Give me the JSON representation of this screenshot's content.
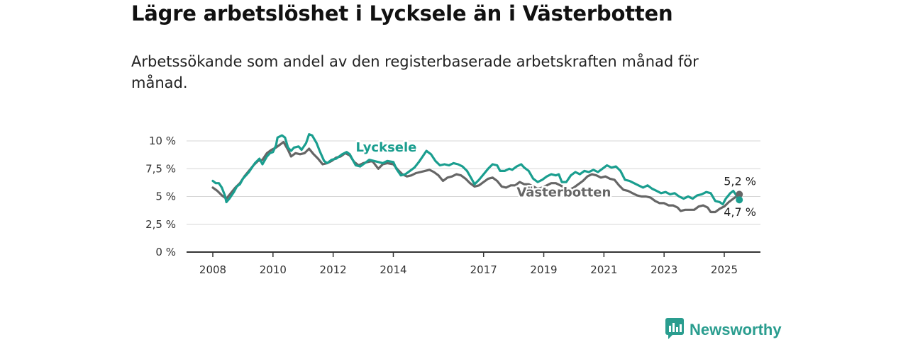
{
  "title": "Lägre arbetslöshet i Lycksele än i Västerbotten",
  "subtitle": "Arbetssökande som andel av den registerbaserade arbetskraften månad för månad.",
  "brand": {
    "name": "Newsworthy",
    "color": "#2a9d8f",
    "icon": "newsworthy-logo-icon"
  },
  "chart_data": {
    "type": "line",
    "ylim": [
      0,
      10
    ],
    "yticks": [
      0,
      2.5,
      5,
      7.5,
      10
    ],
    "ytick_labels": [
      "0 %",
      "2,5 %",
      "5 %",
      "7,5 %",
      "10 %"
    ],
    "xticks": [
      2008,
      2010,
      2012,
      2014,
      2017,
      2019,
      2021,
      2023,
      2025
    ],
    "grid": true,
    "series": [
      {
        "name": "Lycksele",
        "color": "#1a9e8f",
        "end_label": "4,7 %",
        "points": [
          [
            2008.0,
            6.4
          ],
          [
            2008.1,
            6.2
          ],
          [
            2008.2,
            6.2
          ],
          [
            2008.3,
            5.8
          ],
          [
            2008.4,
            5.1
          ],
          [
            2008.45,
            4.5
          ],
          [
            2008.55,
            4.8
          ],
          [
            2008.7,
            5.4
          ],
          [
            2008.8,
            5.9
          ],
          [
            2008.9,
            6.1
          ],
          [
            2009.0,
            6.6
          ],
          [
            2009.2,
            7.2
          ],
          [
            2009.4,
            8.0
          ],
          [
            2009.55,
            8.4
          ],
          [
            2009.65,
            7.9
          ],
          [
            2009.8,
            8.6
          ],
          [
            2009.9,
            8.9
          ],
          [
            2010.0,
            9.0
          ],
          [
            2010.1,
            9.6
          ],
          [
            2010.15,
            10.3
          ],
          [
            2010.3,
            10.5
          ],
          [
            2010.4,
            10.3
          ],
          [
            2010.5,
            9.4
          ],
          [
            2010.6,
            9.1
          ],
          [
            2010.7,
            9.4
          ],
          [
            2010.85,
            9.5
          ],
          [
            2010.95,
            9.2
          ],
          [
            2011.1,
            9.8
          ],
          [
            2011.2,
            10.6
          ],
          [
            2011.3,
            10.5
          ],
          [
            2011.45,
            9.8
          ],
          [
            2011.55,
            9.1
          ],
          [
            2011.7,
            8.2
          ],
          [
            2011.8,
            8.0
          ],
          [
            2011.95,
            8.3
          ],
          [
            2012.1,
            8.4
          ],
          [
            2012.3,
            8.8
          ],
          [
            2012.45,
            9.0
          ],
          [
            2012.55,
            8.8
          ],
          [
            2012.65,
            8.3
          ],
          [
            2012.75,
            7.8
          ],
          [
            2012.9,
            7.7
          ],
          [
            2013.0,
            7.9
          ],
          [
            2013.2,
            8.3
          ],
          [
            2013.5,
            8.1
          ],
          [
            2013.65,
            8.0
          ],
          [
            2013.8,
            8.2
          ],
          [
            2014.0,
            8.1
          ],
          [
            2014.1,
            7.5
          ],
          [
            2014.25,
            6.9
          ],
          [
            2014.4,
            7.0
          ],
          [
            2014.55,
            7.3
          ],
          [
            2014.7,
            7.6
          ],
          [
            2014.85,
            8.1
          ],
          [
            2015.0,
            8.7
          ],
          [
            2015.1,
            9.1
          ],
          [
            2015.25,
            8.8
          ],
          [
            2015.4,
            8.2
          ],
          [
            2015.55,
            7.8
          ],
          [
            2015.7,
            7.9
          ],
          [
            2015.85,
            7.8
          ],
          [
            2016.0,
            8.0
          ],
          [
            2016.15,
            7.9
          ],
          [
            2016.3,
            7.7
          ],
          [
            2016.45,
            7.3
          ],
          [
            2016.6,
            6.6
          ],
          [
            2016.7,
            6.1
          ],
          [
            2016.85,
            6.5
          ],
          [
            2017.0,
            7.0
          ],
          [
            2017.15,
            7.5
          ],
          [
            2017.3,
            7.9
          ],
          [
            2017.45,
            7.8
          ],
          [
            2017.55,
            7.3
          ],
          [
            2017.7,
            7.3
          ],
          [
            2017.85,
            7.5
          ],
          [
            2017.95,
            7.4
          ],
          [
            2018.1,
            7.7
          ],
          [
            2018.25,
            7.9
          ],
          [
            2018.35,
            7.6
          ],
          [
            2018.5,
            7.3
          ],
          [
            2018.65,
            6.6
          ],
          [
            2018.8,
            6.3
          ],
          [
            2018.95,
            6.5
          ],
          [
            2019.1,
            6.8
          ],
          [
            2019.25,
            7.0
          ],
          [
            2019.4,
            6.9
          ],
          [
            2019.5,
            7.0
          ],
          [
            2019.6,
            6.3
          ],
          [
            2019.75,
            6.3
          ],
          [
            2019.9,
            6.9
          ],
          [
            2020.05,
            7.2
          ],
          [
            2020.2,
            7.0
          ],
          [
            2020.35,
            7.3
          ],
          [
            2020.5,
            7.2
          ],
          [
            2020.65,
            7.4
          ],
          [
            2020.8,
            7.2
          ],
          [
            2020.95,
            7.5
          ],
          [
            2021.1,
            7.8
          ],
          [
            2021.25,
            7.6
          ],
          [
            2021.4,
            7.7
          ],
          [
            2021.55,
            7.3
          ],
          [
            2021.7,
            6.5
          ],
          [
            2021.85,
            6.4
          ],
          [
            2022.0,
            6.2
          ],
          [
            2022.15,
            6.0
          ],
          [
            2022.3,
            5.8
          ],
          [
            2022.45,
            6.0
          ],
          [
            2022.6,
            5.7
          ],
          [
            2022.75,
            5.5
          ],
          [
            2022.9,
            5.3
          ],
          [
            2023.05,
            5.4
          ],
          [
            2023.2,
            5.2
          ],
          [
            2023.35,
            5.3
          ],
          [
            2023.5,
            5.0
          ],
          [
            2023.65,
            4.8
          ],
          [
            2023.8,
            5.0
          ],
          [
            2023.95,
            4.8
          ],
          [
            2024.1,
            5.1
          ],
          [
            2024.25,
            5.2
          ],
          [
            2024.4,
            5.4
          ],
          [
            2024.55,
            5.3
          ],
          [
            2024.7,
            4.6
          ],
          [
            2024.85,
            4.5
          ],
          [
            2024.95,
            4.3
          ],
          [
            2025.05,
            4.8
          ],
          [
            2025.2,
            5.3
          ],
          [
            2025.3,
            5.5
          ],
          [
            2025.4,
            5.1
          ],
          [
            2025.5,
            4.7
          ]
        ]
      },
      {
        "name": "Västerbotten",
        "color": "#666666",
        "end_label": "5,2 %",
        "points": [
          [
            2008.0,
            5.8
          ],
          [
            2008.15,
            5.5
          ],
          [
            2008.3,
            5.1
          ],
          [
            2008.45,
            4.8
          ],
          [
            2008.6,
            5.3
          ],
          [
            2008.75,
            5.8
          ],
          [
            2008.9,
            6.2
          ],
          [
            2009.05,
            6.8
          ],
          [
            2009.2,
            7.3
          ],
          [
            2009.35,
            7.8
          ],
          [
            2009.5,
            8.2
          ],
          [
            2009.65,
            8.3
          ],
          [
            2009.8,
            8.9
          ],
          [
            2009.95,
            9.2
          ],
          [
            2010.1,
            9.4
          ],
          [
            2010.2,
            9.6
          ],
          [
            2010.35,
            9.9
          ],
          [
            2010.5,
            9.2
          ],
          [
            2010.6,
            8.6
          ],
          [
            2010.75,
            8.9
          ],
          [
            2010.9,
            8.8
          ],
          [
            2011.05,
            8.9
          ],
          [
            2011.2,
            9.3
          ],
          [
            2011.35,
            8.8
          ],
          [
            2011.5,
            8.4
          ],
          [
            2011.65,
            7.9
          ],
          [
            2011.8,
            8.0
          ],
          [
            2011.95,
            8.2
          ],
          [
            2012.1,
            8.5
          ],
          [
            2012.25,
            8.6
          ],
          [
            2012.4,
            8.9
          ],
          [
            2012.55,
            8.7
          ],
          [
            2012.7,
            8.1
          ],
          [
            2012.85,
            7.8
          ],
          [
            2013.0,
            8.0
          ],
          [
            2013.15,
            8.1
          ],
          [
            2013.3,
            8.2
          ],
          [
            2013.5,
            7.5
          ],
          [
            2013.65,
            7.9
          ],
          [
            2013.8,
            8.0
          ],
          [
            2014.0,
            7.9
          ],
          [
            2014.15,
            7.4
          ],
          [
            2014.3,
            7.0
          ],
          [
            2014.45,
            6.8
          ],
          [
            2014.6,
            6.9
          ],
          [
            2014.75,
            7.1
          ],
          [
            2014.9,
            7.2
          ],
          [
            2015.05,
            7.3
          ],
          [
            2015.2,
            7.4
          ],
          [
            2015.35,
            7.2
          ],
          [
            2015.5,
            6.9
          ],
          [
            2015.65,
            6.4
          ],
          [
            2015.8,
            6.7
          ],
          [
            2015.95,
            6.8
          ],
          [
            2016.1,
            7.0
          ],
          [
            2016.25,
            6.9
          ],
          [
            2016.4,
            6.6
          ],
          [
            2016.55,
            6.2
          ],
          [
            2016.7,
            5.9
          ],
          [
            2016.85,
            6.0
          ],
          [
            2017.0,
            6.3
          ],
          [
            2017.15,
            6.6
          ],
          [
            2017.3,
            6.7
          ],
          [
            2017.45,
            6.4
          ],
          [
            2017.6,
            5.9
          ],
          [
            2017.75,
            5.8
          ],
          [
            2017.9,
            6.0
          ],
          [
            2018.05,
            6.0
          ],
          [
            2018.2,
            6.3
          ],
          [
            2018.35,
            6.1
          ],
          [
            2018.5,
            6.1
          ],
          [
            2018.65,
            5.9
          ],
          [
            2018.8,
            5.7
          ],
          [
            2018.95,
            5.8
          ],
          [
            2019.1,
            6.0
          ],
          [
            2019.25,
            6.2
          ],
          [
            2019.4,
            6.2
          ],
          [
            2019.55,
            6.0
          ],
          [
            2019.7,
            5.8
          ],
          [
            2019.85,
            5.6
          ],
          [
            2020.0,
            5.8
          ],
          [
            2020.15,
            6.1
          ],
          [
            2020.3,
            6.4
          ],
          [
            2020.45,
            6.8
          ],
          [
            2020.6,
            7.0
          ],
          [
            2020.75,
            6.9
          ],
          [
            2020.9,
            6.7
          ],
          [
            2021.05,
            6.8
          ],
          [
            2021.2,
            6.6
          ],
          [
            2021.35,
            6.5
          ],
          [
            2021.5,
            6.0
          ],
          [
            2021.65,
            5.6
          ],
          [
            2021.8,
            5.5
          ],
          [
            2021.95,
            5.3
          ],
          [
            2022.1,
            5.1
          ],
          [
            2022.25,
            5.0
          ],
          [
            2022.4,
            5.0
          ],
          [
            2022.55,
            4.9
          ],
          [
            2022.7,
            4.6
          ],
          [
            2022.85,
            4.4
          ],
          [
            2023.0,
            4.4
          ],
          [
            2023.15,
            4.2
          ],
          [
            2023.3,
            4.2
          ],
          [
            2023.45,
            4.0
          ],
          [
            2023.55,
            3.7
          ],
          [
            2023.7,
            3.8
          ],
          [
            2023.85,
            3.8
          ],
          [
            2024.0,
            3.8
          ],
          [
            2024.15,
            4.1
          ],
          [
            2024.3,
            4.2
          ],
          [
            2024.45,
            4.0
          ],
          [
            2024.55,
            3.6
          ],
          [
            2024.7,
            3.6
          ],
          [
            2024.85,
            3.9
          ],
          [
            2025.0,
            4.1
          ],
          [
            2025.15,
            4.5
          ],
          [
            2025.3,
            4.8
          ],
          [
            2025.4,
            5.0
          ],
          [
            2025.5,
            5.2
          ]
        ]
      }
    ]
  }
}
